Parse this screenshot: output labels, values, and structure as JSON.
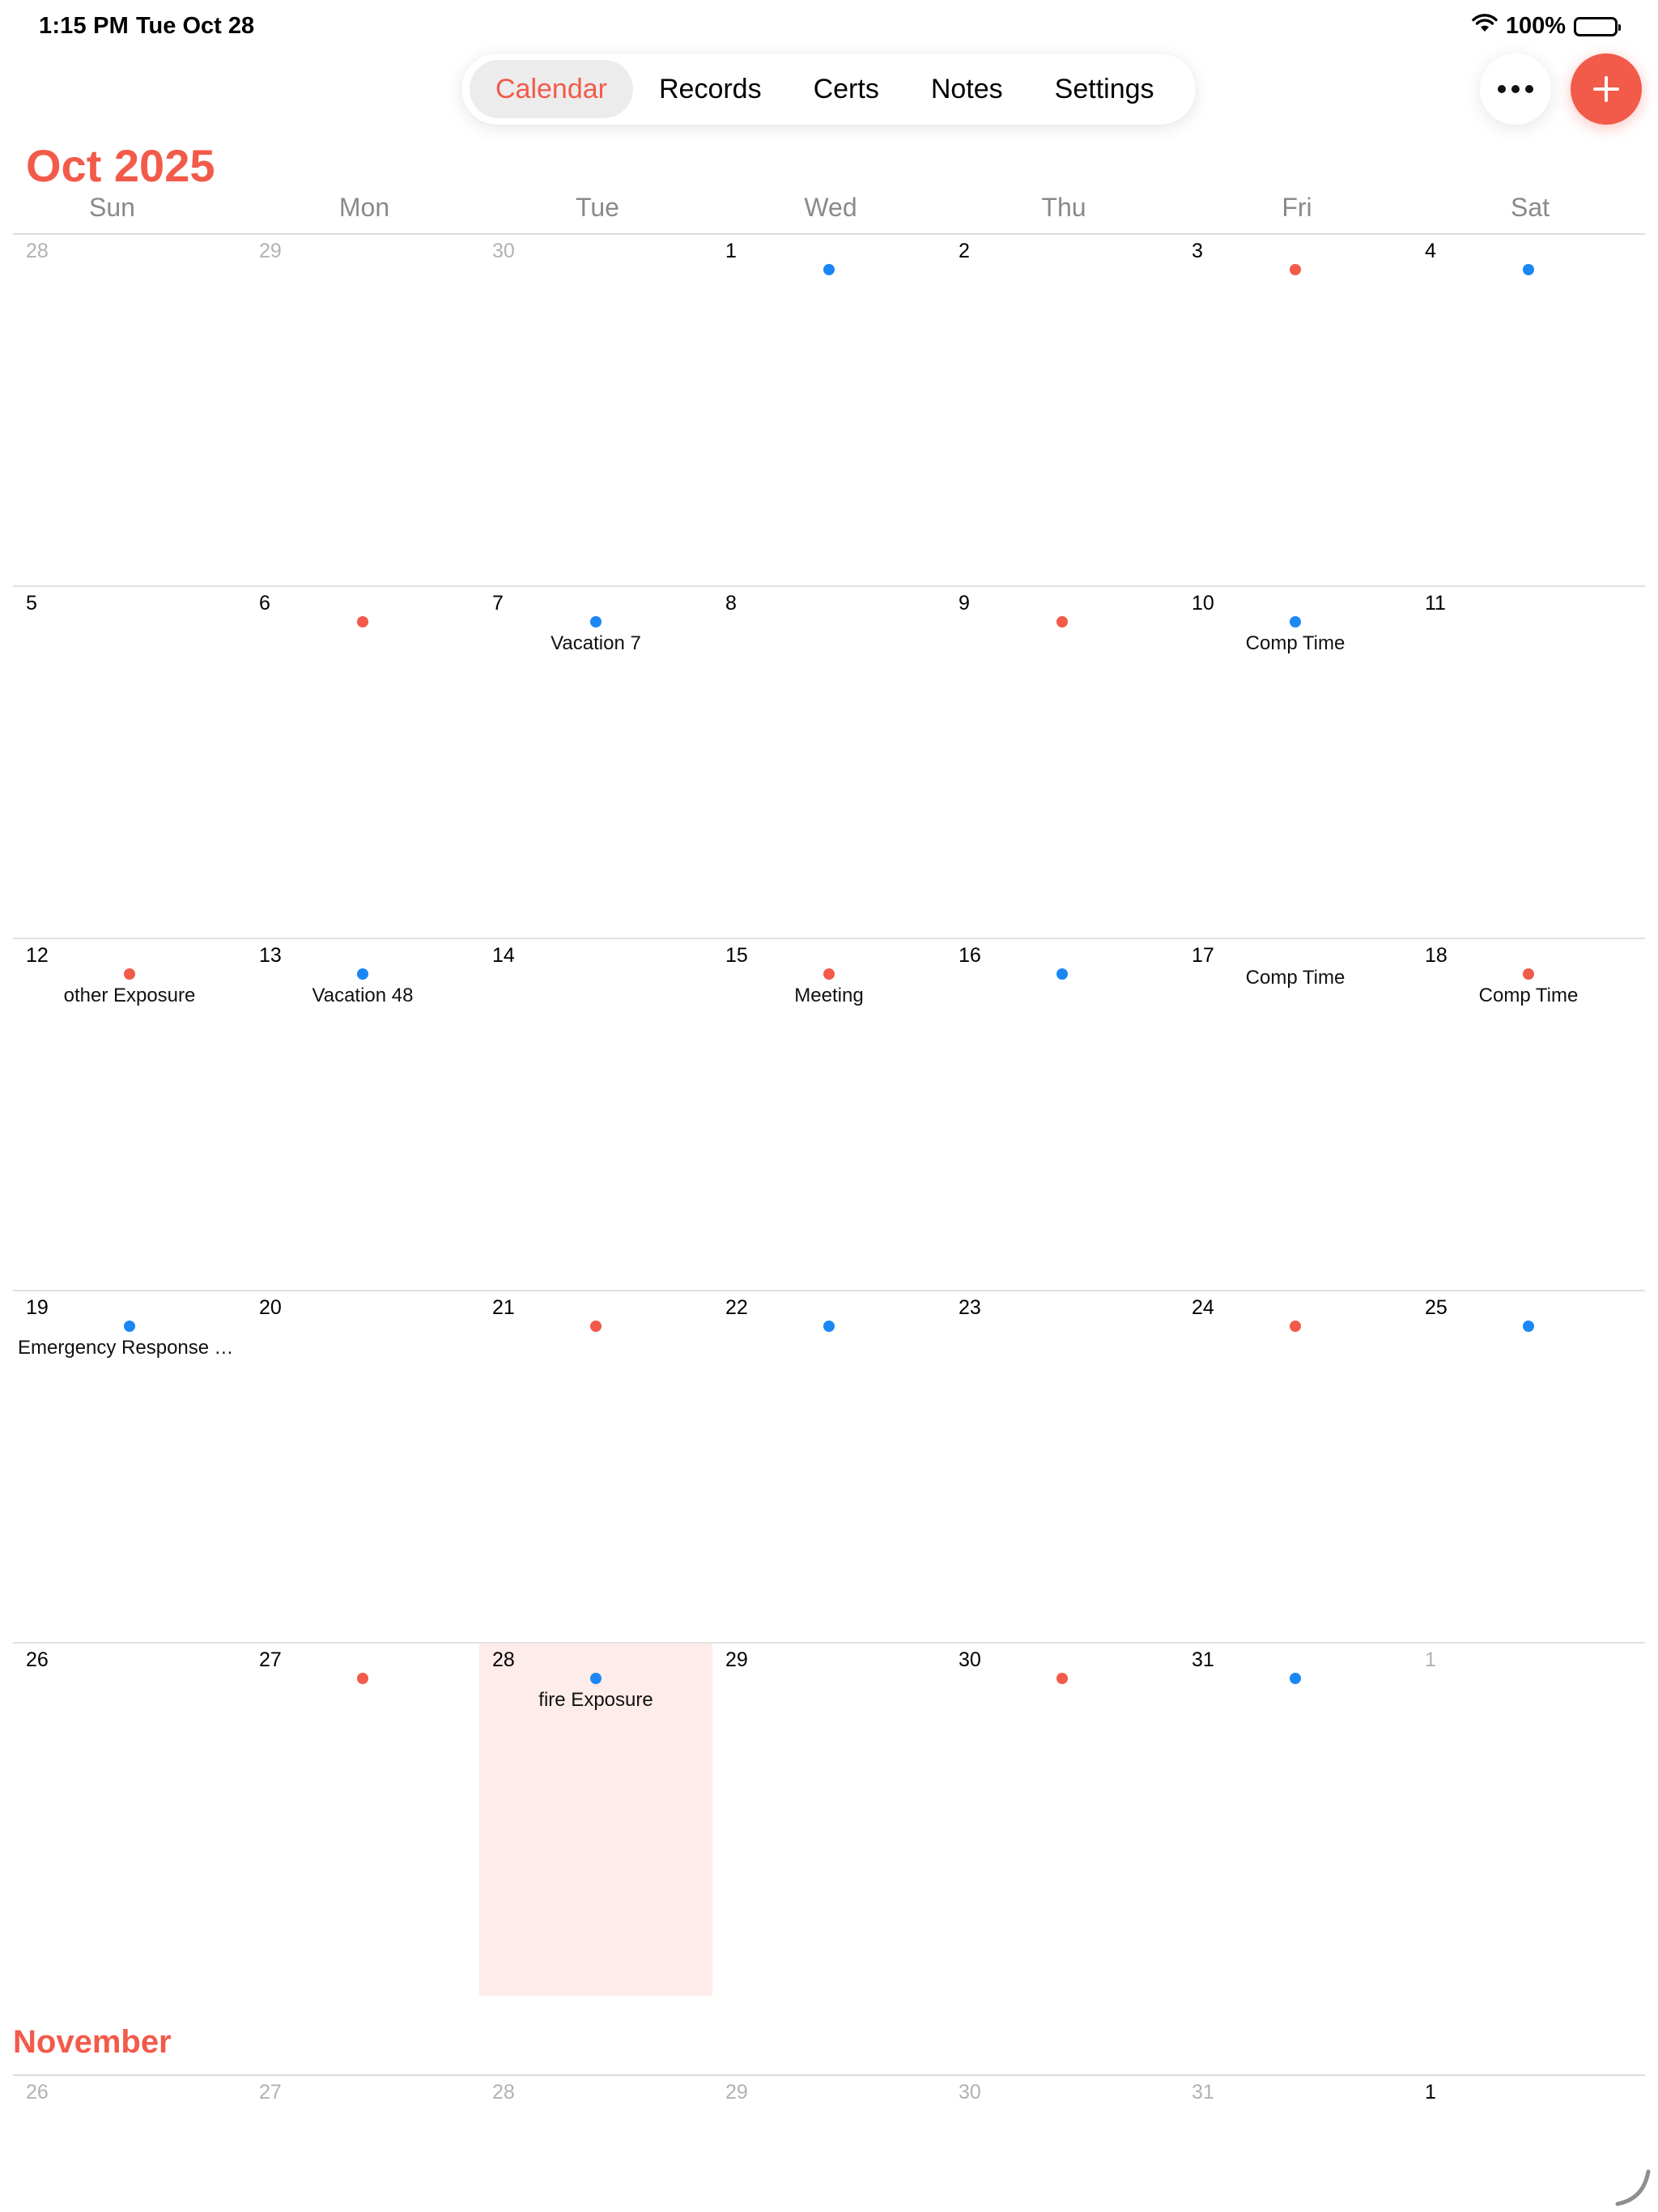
{
  "status": {
    "time": "1:15 PM",
    "date": "Tue Oct 28",
    "battery": "100%",
    "wifi_icon": "wifi-icon",
    "battery_icon": "battery-icon"
  },
  "tabs": [
    {
      "label": "Calendar",
      "active": true
    },
    {
      "label": "Records",
      "active": false
    },
    {
      "label": "Certs",
      "active": false
    },
    {
      "label": "Notes",
      "active": false
    },
    {
      "label": "Settings",
      "active": false
    }
  ],
  "actions": {
    "more_icon": "ellipsis-icon",
    "add_icon": "plus-icon"
  },
  "colors": {
    "accent": "#f25a4a",
    "dot_red": "#f25a4a",
    "dot_blue": "#1a87f5",
    "today_bg": "#fdece9"
  },
  "month_title": "Oct 2025",
  "weekdays": [
    "Sun",
    "Mon",
    "Tue",
    "Wed",
    "Thu",
    "Fri",
    "Sat"
  ],
  "weeks": [
    [
      {
        "num": "28",
        "faded": true
      },
      {
        "num": "29",
        "faded": true
      },
      {
        "num": "30",
        "faded": true
      },
      {
        "num": "1",
        "dot": "blue"
      },
      {
        "num": "2"
      },
      {
        "num": "3",
        "dot": "red"
      },
      {
        "num": "4",
        "dot": "blue"
      }
    ],
    [
      {
        "num": "5"
      },
      {
        "num": "6",
        "dot": "red"
      },
      {
        "num": "7",
        "dot": "blue",
        "event": "Vacation 7"
      },
      {
        "num": "8"
      },
      {
        "num": "9",
        "dot": "red"
      },
      {
        "num": "10",
        "dot": "blue",
        "event": "Comp Time"
      },
      {
        "num": "11"
      }
    ],
    [
      {
        "num": "12",
        "dot": "red",
        "event": "other Exposure"
      },
      {
        "num": "13",
        "dot": "blue",
        "event": "Vacation 48"
      },
      {
        "num": "14"
      },
      {
        "num": "15",
        "dot": "red",
        "event": "Meeting"
      },
      {
        "num": "16",
        "dot": "blue"
      },
      {
        "num": "17",
        "event": "Comp Time"
      },
      {
        "num": "18",
        "dot": "red",
        "event": "Comp Time"
      }
    ],
    [
      {
        "num": "19",
        "dot": "blue",
        "event": "Emergency Response Tra..."
      },
      {
        "num": "20"
      },
      {
        "num": "21",
        "dot": "red"
      },
      {
        "num": "22",
        "dot": "blue"
      },
      {
        "num": "23"
      },
      {
        "num": "24",
        "dot": "red"
      },
      {
        "num": "25",
        "dot": "blue"
      }
    ],
    [
      {
        "num": "26"
      },
      {
        "num": "27",
        "dot": "red"
      },
      {
        "num": "28",
        "dot": "blue",
        "event": "fire Exposure",
        "today": true
      },
      {
        "num": "29"
      },
      {
        "num": "30",
        "dot": "red"
      },
      {
        "num": "31",
        "dot": "blue"
      },
      {
        "num": "1",
        "faded": true
      }
    ]
  ],
  "next_month": {
    "title": "November",
    "days": [
      {
        "num": "26",
        "faded": true
      },
      {
        "num": "27",
        "faded": true
      },
      {
        "num": "28",
        "faded": true
      },
      {
        "num": "29",
        "faded": true
      },
      {
        "num": "30",
        "faded": true
      },
      {
        "num": "31",
        "faded": true
      },
      {
        "num": "1"
      }
    ]
  }
}
